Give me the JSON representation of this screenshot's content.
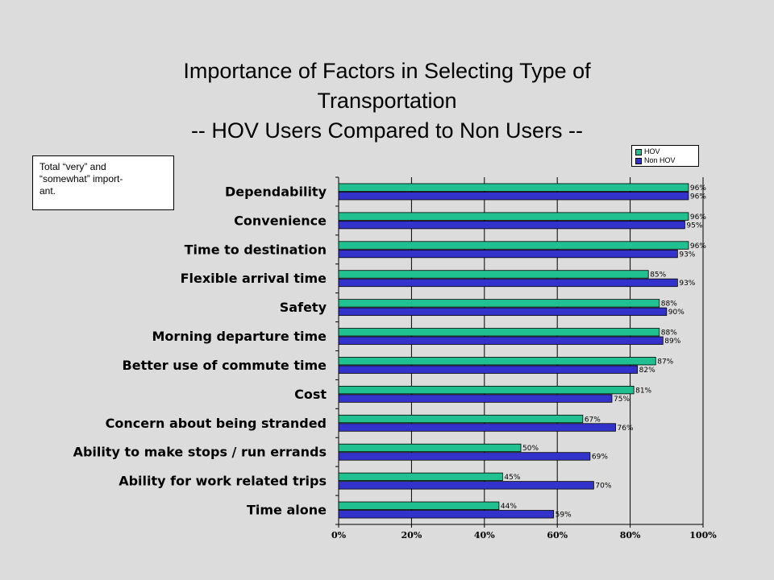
{
  "title": {
    "line1": "Importance of Factors in Selecting Type of",
    "line2": "Transportation",
    "line3": "-- HOV Users Compared to Non Users --"
  },
  "note": {
    "line1": "Total “very” and",
    "line2": "“somewhat” import-",
    "line3": "ant."
  },
  "chart_data": {
    "type": "bar",
    "orientation": "horizontal",
    "categories": [
      "Dependability",
      "Convenience",
      "Time to destination",
      "Flexible arrival time",
      "Safety",
      "Morning departure time",
      "Better use of commute time",
      "Cost",
      "Concern about being stranded",
      "Ability to make stops / run errands",
      "Ability for work related trips",
      "Time alone"
    ],
    "series": [
      {
        "name": "HOV",
        "color": "#20c090",
        "values": [
          96,
          96,
          96,
          85,
          88,
          88,
          87,
          81,
          67,
          50,
          45,
          44
        ]
      },
      {
        "name": "Non HOV",
        "color": "#3333cc",
        "values": [
          96,
          95,
          93,
          93,
          90,
          89,
          82,
          75,
          76,
          69,
          70,
          59
        ]
      }
    ],
    "xlim": [
      0,
      100
    ],
    "xticks": [
      "0%",
      "20%",
      "40%",
      "60%",
      "80%",
      "100%"
    ],
    "xtick_values": [
      0,
      20,
      40,
      60,
      80,
      100
    ],
    "value_suffix": "%",
    "grid": true,
    "legend_position": "top-right"
  }
}
